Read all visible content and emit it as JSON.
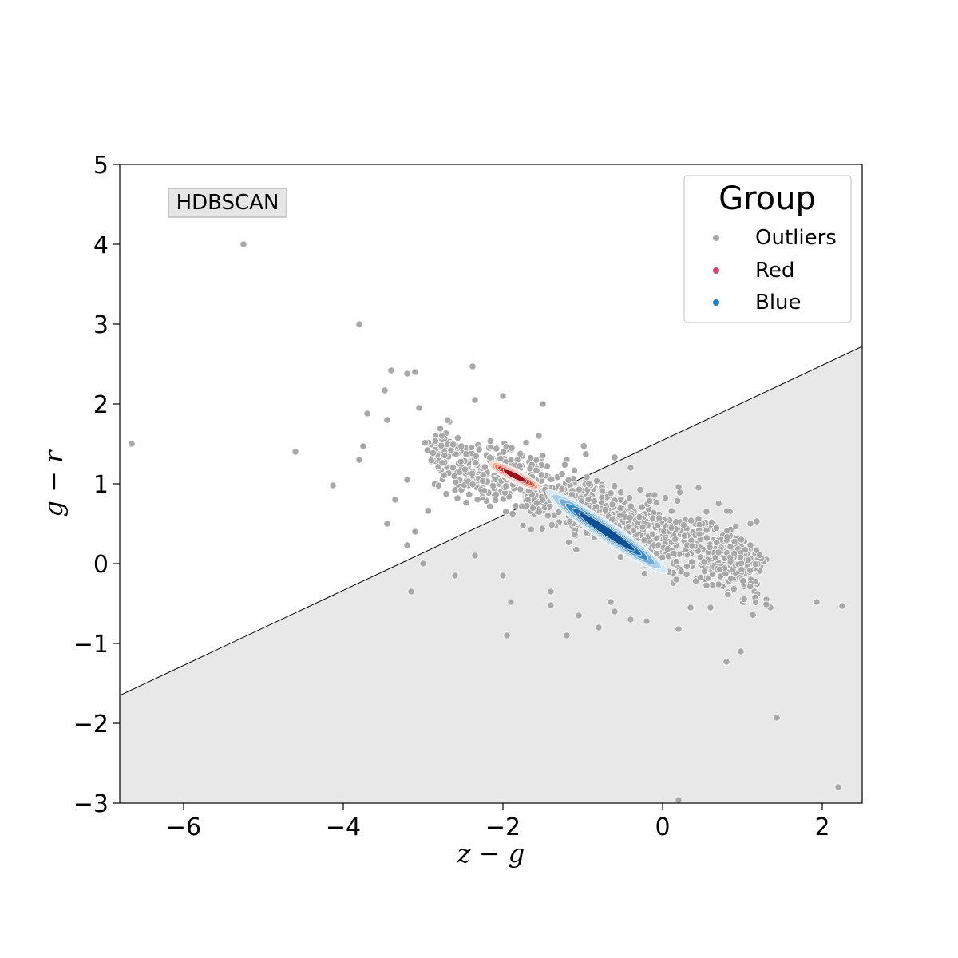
{
  "chart_data": {
    "type": "scatter",
    "xlabel": "z − g",
    "ylabel": "g − r",
    "xlim": [
      -6.8,
      2.5
    ],
    "ylim": [
      -3,
      5
    ],
    "xticks": [
      -6,
      -4,
      -2,
      0,
      2
    ],
    "yticks": [
      -3,
      -2,
      -1,
      0,
      1,
      2,
      3,
      4,
      5
    ],
    "xtick_labels": [
      "−6",
      "−4",
      "−2",
      "0",
      "2"
    ],
    "ytick_labels": [
      "−3",
      "−2",
      "−1",
      "0",
      "1",
      "2",
      "3",
      "4",
      "5"
    ],
    "grid": false,
    "annotation": "HDBSCAN",
    "legend": {
      "title": "Group",
      "placement": "top-right",
      "entries": [
        {
          "label": "Outliers",
          "color": "#a8a8a8"
        },
        {
          "label": "Red",
          "color": "#d1426f"
        },
        {
          "label": "Blue",
          "color": "#1f7fc4"
        }
      ]
    },
    "dividing_line": {
      "x": [
        -6.8,
        2.5
      ],
      "y": [
        -1.65,
        2.72
      ],
      "shade_below": true,
      "shade_color": "#e8e8e8"
    },
    "series": [
      {
        "name": "Outliers",
        "color": "#a8a8a8",
        "points": [
          [
            -6.65,
            1.5
          ],
          [
            -5.25,
            4.0
          ],
          [
            -4.6,
            1.4
          ],
          [
            -4.13,
            0.98
          ],
          [
            -3.8,
            3.0
          ],
          [
            -3.8,
            1.3
          ],
          [
            -3.75,
            1.47
          ],
          [
            -3.7,
            1.88
          ],
          [
            -3.48,
            2.17
          ],
          [
            -3.4,
            2.42
          ],
          [
            -3.35,
            0.8
          ],
          [
            -3.45,
            0.5
          ],
          [
            -3.2,
            2.38
          ],
          [
            -3.1,
            2.4
          ],
          [
            -3.1,
            0.4
          ],
          [
            -3.0,
            0.0
          ],
          [
            -3.15,
            -0.35
          ],
          [
            -3.2,
            0.23
          ],
          [
            -3.45,
            1.8
          ],
          [
            -3.05,
            1.95
          ],
          [
            -2.38,
            2.47
          ],
          [
            -2.35,
            2.05
          ],
          [
            -2.0,
            2.1
          ],
          [
            -1.5,
            2.0
          ],
          [
            -1.55,
            1.6
          ],
          [
            -1.2,
            1.3
          ],
          [
            -2.35,
            0.1
          ],
          [
            -2.6,
            -0.15
          ],
          [
            -2.0,
            -0.15
          ],
          [
            -1.9,
            -0.48
          ],
          [
            -1.95,
            -0.9
          ],
          [
            -1.4,
            -0.35
          ],
          [
            -1.4,
            -0.52
          ],
          [
            -1.2,
            -0.9
          ],
          [
            -1.05,
            -0.65
          ],
          [
            -0.8,
            -0.8
          ],
          [
            -0.65,
            -0.48
          ],
          [
            -0.6,
            -0.6
          ],
          [
            -0.4,
            -0.7
          ],
          [
            -0.2,
            -0.72
          ],
          [
            0.2,
            -0.82
          ],
          [
            0.35,
            -0.55
          ],
          [
            0.6,
            -0.55
          ],
          [
            0.8,
            -1.23
          ],
          [
            0.98,
            -1.1
          ],
          [
            1.0,
            -0.45
          ],
          [
            1.15,
            -0.35
          ],
          [
            1.3,
            -0.45
          ],
          [
            1.35,
            -0.55
          ],
          [
            1.2,
            0.1
          ],
          [
            1.3,
            0.05
          ],
          [
            1.1,
            0.5
          ],
          [
            1.18,
            0.53
          ],
          [
            0.45,
            0.95
          ],
          [
            0.55,
            0.65
          ],
          [
            0.2,
            0.96
          ],
          [
            -0.4,
            1.2
          ],
          [
            -0.6,
            1.33
          ],
          [
            1.43,
            -1.93
          ],
          [
            1.93,
            -0.48
          ],
          [
            2.25,
            -0.53
          ],
          [
            2.2,
            -2.8
          ],
          [
            0.2,
            -2.96
          ],
          [
            -2.7,
            1.45
          ],
          [
            -2.9,
            1.28
          ],
          [
            -3.2,
            1.05
          ]
        ]
      },
      {
        "name": "Red",
        "color": "#d1426f",
        "cluster_center": [
          -1.85,
          1.1
        ],
        "cluster_range_x": [
          -2.1,
          -1.5
        ]
      },
      {
        "name": "Blue",
        "color": "#1f7fc4",
        "cluster_center": [
          -0.7,
          0.4
        ],
        "cluster_range_x": [
          -1.55,
          0.0
        ]
      }
    ]
  }
}
